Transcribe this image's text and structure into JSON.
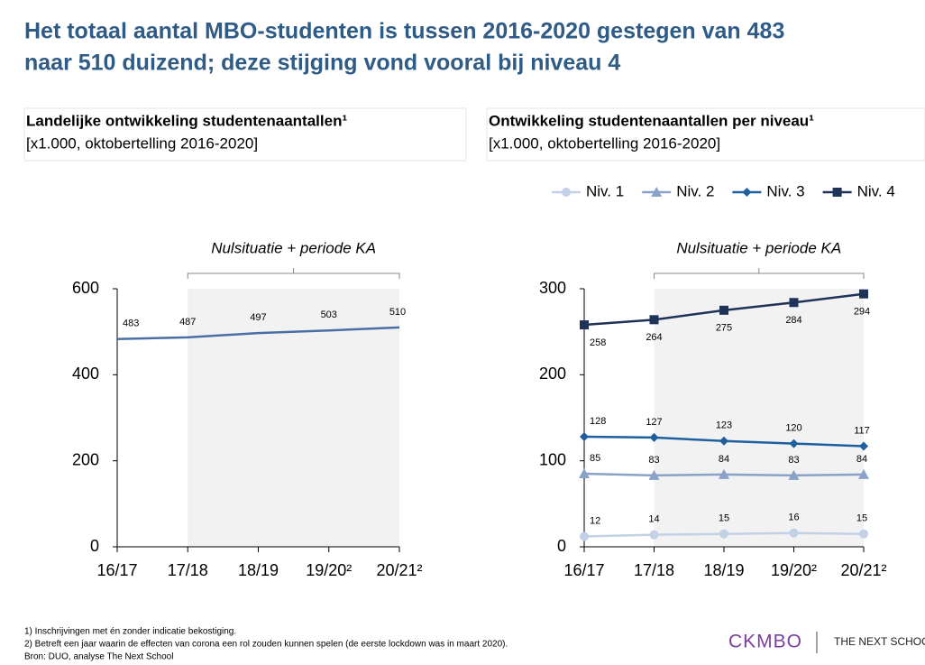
{
  "header": {
    "title_lines": [
      "Het totaal aantal MBO-studenten is tussen 2016-2020 gestegen van 483",
      "naar 510 duizend; deze stijging vond vooral bij niveau 4"
    ]
  },
  "chart_data": [
    {
      "type": "line",
      "title": "Landelijke ontwikkeling studentenaantallen¹",
      "subtitle": "[x1.000, oktobertelling 2016-2020]",
      "categories": [
        "16/17",
        "17/18",
        "18/19",
        "19/20²",
        "20/21²"
      ],
      "series": [
        {
          "color": "#4a6fa5",
          "marker": "none",
          "label_position": "above",
          "values": [
            483,
            487,
            497,
            503,
            510
          ]
        }
      ],
      "ylim": [
        0,
        600
      ],
      "yticks": [
        0,
        200,
        400,
        600
      ],
      "annotation": "Nulsituatie + periode KA",
      "shade": [
        "17/18",
        "20/21²"
      ],
      "legend": false
    },
    {
      "type": "line",
      "title": "Ontwikkeling studentenaantallen per niveau¹",
      "subtitle": "[x1.000, oktobertelling 2016-2020]",
      "categories": [
        "16/17",
        "17/18",
        "18/19",
        "19/20²",
        "20/21²"
      ],
      "series": [
        {
          "name": "Niv. 1",
          "color": "#c3d1e6",
          "marker": "circle",
          "label_position": "above",
          "values": [
            12,
            14,
            15,
            16,
            15
          ]
        },
        {
          "name": "Niv. 2",
          "color": "#8aa2c8",
          "marker": "triangle",
          "label_position": "above",
          "values": [
            85,
            83,
            84,
            83,
            84
          ]
        },
        {
          "name": "Niv. 3",
          "color": "#1f5f9e",
          "marker": "diamond",
          "label_position": "above",
          "values": [
            128,
            127,
            123,
            120,
            117
          ]
        },
        {
          "name": "Niv. 4",
          "color": "#1f3358",
          "marker": "square",
          "label_position": "below",
          "values": [
            258,
            264,
            275,
            284,
            294
          ]
        }
      ],
      "ylim": [
        0,
        300
      ],
      "yticks": [
        0,
        100,
        200,
        300
      ],
      "annotation": "Nulsituatie + periode KA",
      "shade": [
        "17/18",
        "20/21²"
      ],
      "legend": "top"
    }
  ],
  "footnotes": [
    "1)    Inschrijvingen met én zonder indicatie bekostiging.",
    "2)    Betreft een jaar waarin de effecten van corona een rol zouden kunnen spelen (de eerste lockdown was in maart 2020).",
    "Bron: DUO, analyse The Next School"
  ],
  "logos": [
    "CKMBO",
    "THE NEXT SCHOOL"
  ]
}
